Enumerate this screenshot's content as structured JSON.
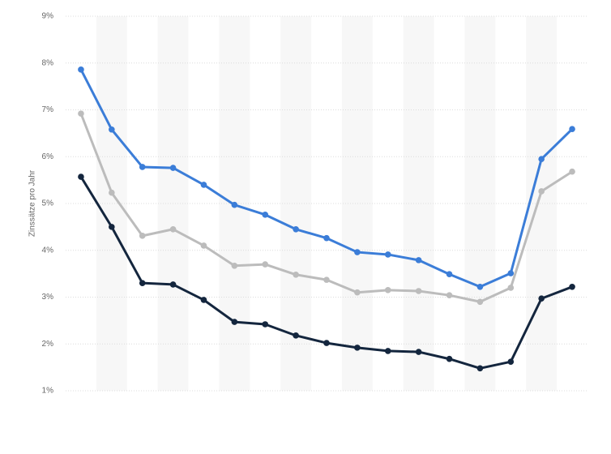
{
  "chart_data": {
    "type": "line",
    "y_label": "Zinssätze pro Jahr",
    "categories": [
      null,
      null,
      null,
      null,
      null,
      null,
      null,
      null,
      null,
      null,
      null,
      null,
      null,
      null,
      null,
      null,
      null
    ],
    "series": [
      {
        "color": "#3b7dd8",
        "values": [
          7.86,
          6.58,
          5.78,
          5.76,
          5.4,
          4.97,
          4.76,
          4.45,
          4.26,
          3.96,
          3.91,
          3.79,
          3.49,
          3.22,
          3.51,
          5.95,
          6.59
        ]
      },
      {
        "color": "#bcbcbc",
        "values": [
          6.92,
          5.23,
          4.31,
          4.45,
          4.1,
          3.67,
          3.7,
          3.48,
          3.37,
          3.1,
          3.15,
          3.13,
          3.04,
          2.9,
          3.2,
          5.26,
          5.68
        ]
      },
      {
        "color": "#14263e",
        "values": [
          5.57,
          4.5,
          3.3,
          3.27,
          2.94,
          2.47,
          2.42,
          2.18,
          2.02,
          1.92,
          1.85,
          1.83,
          1.68,
          1.48,
          1.62,
          2.97,
          3.22
        ]
      }
    ],
    "ylim": [
      1,
      9
    ],
    "yticks": [
      {
        "value": 1,
        "label": "1%"
      },
      {
        "value": 2,
        "label": "2%"
      },
      {
        "value": 3,
        "label": "3%"
      },
      {
        "value": 4,
        "label": "4%"
      },
      {
        "value": 5,
        "label": "5%"
      },
      {
        "value": 6,
        "label": "6%"
      },
      {
        "value": 7,
        "label": "7%"
      },
      {
        "value": 8,
        "label": "8%"
      },
      {
        "value": 9,
        "label": "9%"
      }
    ],
    "grid": true
  }
}
